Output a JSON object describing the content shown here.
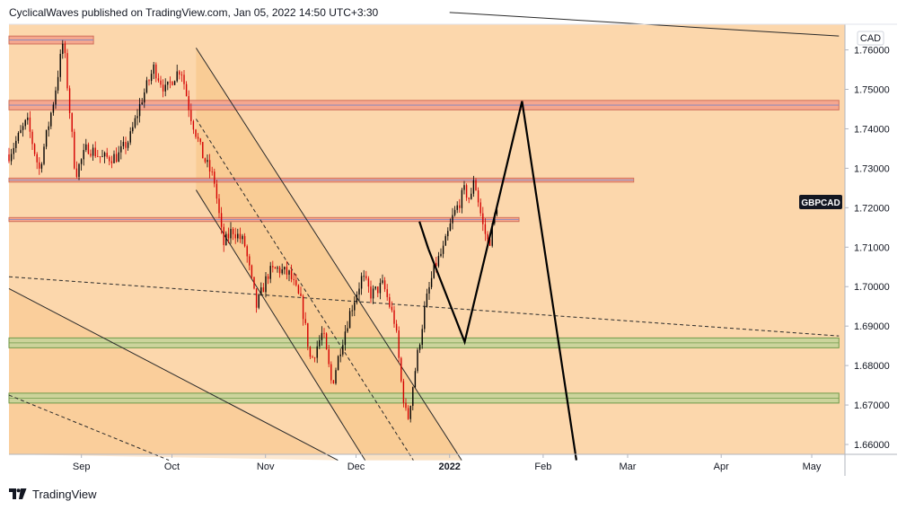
{
  "header": {
    "text": "CyclicalWaves published on TradingView.com, Jan 05, 2022 14:50 UTC+3:30"
  },
  "footer": {
    "brand": "TradingView"
  },
  "colors": {
    "background": "#fcd7ac",
    "candle_up": "#000000",
    "candle_down": "#d50000",
    "resistance_zone": "#f4a28c",
    "support_zone": "#c6d49a",
    "projection": "#000000"
  },
  "chart_data": {
    "type": "candlestick",
    "symbol_label": "GBPCAD",
    "currency_label": "CAD",
    "last_price": 1.7213,
    "x_tick_labels": [
      "Sep",
      "Oct",
      "Nov",
      "Dec",
      "2022",
      "Feb",
      "Mar",
      "Apr",
      "May"
    ],
    "x_tick_dates": [
      "2021-09-01",
      "2021-10-01",
      "2021-11-01",
      "2021-12-01",
      "2022-01-01",
      "2022-02-01",
      "2022-03-01",
      "2022-04-01",
      "2022-05-01"
    ],
    "x_range": [
      "2021-08-08",
      "2022-05-12"
    ],
    "y_ticks": [
      "1.76000",
      "1.75000",
      "1.74000",
      "1.73000",
      "1.72000",
      "1.71000",
      "1.70000",
      "1.69000",
      "1.68000",
      "1.67000",
      "1.66000"
    ],
    "ylim": [
      1.6575,
      1.7665
    ],
    "price_path": [
      [
        "2021-08-08",
        1.7335
      ],
      [
        "2021-08-14",
        1.742
      ],
      [
        "2021-08-18",
        1.7295
      ],
      [
        "2021-08-23",
        1.748
      ],
      [
        "2021-08-26",
        1.7625
      ],
      [
        "2021-08-30",
        1.7285
      ],
      [
        "2021-09-03",
        1.7355
      ],
      [
        "2021-09-08",
        1.7325
      ],
      [
        "2021-09-13",
        1.733
      ],
      [
        "2021-09-17",
        1.7375
      ],
      [
        "2021-09-21",
        1.7475
      ],
      [
        "2021-09-25",
        1.7555
      ],
      [
        "2021-09-29",
        1.7495
      ],
      [
        "2021-10-01",
        1.7525
      ],
      [
        "2021-10-04",
        1.7555
      ],
      [
        "2021-10-07",
        1.744
      ],
      [
        "2021-10-11",
        1.7335
      ],
      [
        "2021-10-15",
        1.727
      ],
      [
        "2021-10-18",
        1.7105
      ],
      [
        "2021-10-21",
        1.7145
      ],
      [
        "2021-10-25",
        1.711
      ],
      [
        "2021-10-29",
        1.695
      ],
      [
        "2021-11-02",
        1.7035
      ],
      [
        "2021-11-05",
        1.7045
      ],
      [
        "2021-11-09",
        1.703
      ],
      [
        "2021-11-13",
        1.6955
      ],
      [
        "2021-11-16",
        1.681
      ],
      [
        "2021-11-20",
        1.6885
      ],
      [
        "2021-11-23",
        1.675
      ],
      [
        "2021-11-26",
        1.685
      ],
      [
        "2021-11-29",
        1.6935
      ],
      [
        "2021-12-03",
        1.7025
      ],
      [
        "2021-12-06",
        1.698
      ],
      [
        "2021-12-10",
        1.7005
      ],
      [
        "2021-12-14",
        1.6905
      ],
      [
        "2021-12-16",
        1.6755
      ],
      [
        "2021-12-18",
        1.6655
      ],
      [
        "2021-12-21",
        1.681
      ],
      [
        "2021-12-24",
        1.6955
      ],
      [
        "2021-12-27",
        1.705
      ],
      [
        "2021-12-30",
        1.7095
      ],
      [
        "2022-01-02",
        1.7175
      ],
      [
        "2022-01-06",
        1.7245
      ],
      [
        "2022-01-08",
        1.7215
      ],
      [
        "2022-01-09",
        1.728
      ],
      [
        "2022-01-12",
        1.7155
      ],
      [
        "2022-01-14",
        1.7105
      ],
      [
        "2022-01-17",
        1.722
      ]
    ],
    "zones": [
      {
        "kind": "resistance",
        "from": 1.7615,
        "to": 1.7635,
        "start": "2021-08-08",
        "end": "2021-09-05"
      },
      {
        "kind": "resistance",
        "from": 1.7448,
        "to": 1.7472,
        "start": "2021-08-08",
        "end": "2022-05-10"
      },
      {
        "kind": "resistance",
        "from": 1.7265,
        "to": 1.7275,
        "start": "2021-08-08",
        "end": "2022-03-03"
      },
      {
        "kind": "resistance",
        "from": 1.7165,
        "to": 1.7175,
        "start": "2021-08-08",
        "end": "2022-01-24"
      },
      {
        "kind": "support",
        "from": 1.6845,
        "to": 1.687,
        "start": "2021-08-08",
        "end": "2022-05-10"
      },
      {
        "kind": "support",
        "from": 1.6705,
        "to": 1.673,
        "start": "2021-08-08",
        "end": "2022-05-10"
      }
    ],
    "trend_lines": [
      {
        "style": "solid",
        "from": [
          "2021-10-09",
          1.7605
        ],
        "to": [
          "2022-01-05",
          1.656
        ]
      },
      {
        "style": "solid",
        "from": [
          "2021-10-09",
          1.7245
        ],
        "to": [
          "2021-12-04",
          1.656
        ]
      },
      {
        "style": "dashed",
        "from": [
          "2021-10-09",
          1.7425
        ],
        "to": [
          "2021-12-20",
          1.656
        ]
      },
      {
        "style": "dashed",
        "from": [
          "2021-08-08",
          1.7025
        ],
        "to": [
          "2022-05-10",
          1.6875
        ]
      },
      {
        "style": "solid",
        "from": [
          "2021-08-08",
          1.6995
        ],
        "to": [
          "2021-11-25",
          1.656
        ]
      },
      {
        "style": "dashed",
        "from": [
          "2021-08-08",
          1.6725
        ],
        "to": [
          "2021-09-30",
          1.656
        ]
      },
      {
        "style": "solid",
        "from": [
          "2022-01-01",
          1.7695
        ],
        "to": [
          "2022-05-10",
          1.7635
        ]
      }
    ],
    "projection_path": [
      [
        "2021-12-25",
        1.7095
      ],
      [
        "2022-01-06",
        1.686
      ],
      [
        "2022-01-25",
        1.747
      ],
      [
        "2022-02-12",
        1.656
      ]
    ],
    "projection_start": [
      "2021-12-22",
      1.7165
    ]
  }
}
